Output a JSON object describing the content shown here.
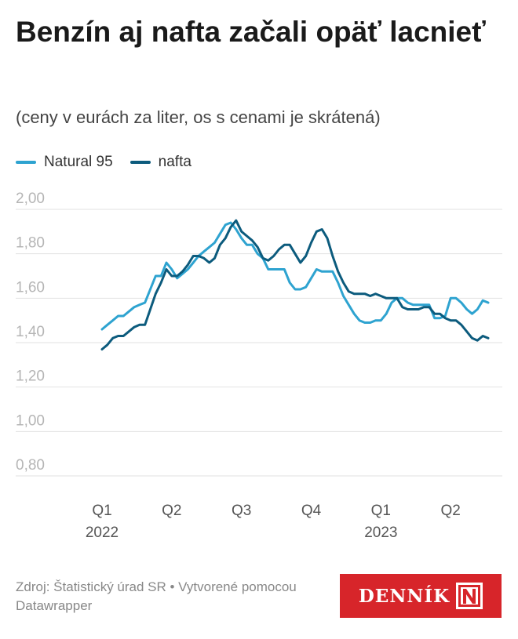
{
  "header": {
    "title": "Benzín aj nafta začali opäť lacnieť",
    "subtitle": "(ceny v eurách za liter, os s cenami je skrátená)"
  },
  "legend": [
    {
      "label": "Natural 95",
      "color": "#2ea3d0"
    },
    {
      "label": "nafta",
      "color": "#0c5b7d"
    }
  ],
  "footer": {
    "source": "Zdroj: Štatistický úrad SR • Vytvorené pomocou Datawrapper"
  },
  "brand": {
    "name": "DENNÍK",
    "mark_icon": "letter-n-logo"
  },
  "chart_data": {
    "type": "line",
    "title": "Benzín aj nafta začali opäť lacnieť",
    "subtitle": "(ceny v eurách za liter, os s cenami je skrátená)",
    "xlabel": "",
    "ylabel": "",
    "ylim": [
      0.8,
      2.0
    ],
    "y_ticks": [
      "2,00",
      "1,80",
      "1,60",
      "1,40",
      "1,20",
      "1,00",
      "0,80"
    ],
    "y_tick_values": [
      2.0,
      1.8,
      1.6,
      1.4,
      1.2,
      1.0,
      0.8
    ],
    "x_ticks": [
      {
        "label": "Q1",
        "sub": "2022",
        "week": 0
      },
      {
        "label": "Q2",
        "sub": "",
        "week": 13
      },
      {
        "label": "Q3",
        "sub": "",
        "week": 26
      },
      {
        "label": "Q4",
        "sub": "",
        "week": 39
      },
      {
        "label": "Q1",
        "sub": "2023",
        "week": 52
      },
      {
        "label": "Q2",
        "sub": "",
        "week": 65
      }
    ],
    "x_unit": "week",
    "grid": true,
    "legend_position": "top-left",
    "series": [
      {
        "name": "Natural 95",
        "color": "#2ea3d0",
        "values": [
          1.46,
          1.48,
          1.5,
          1.52,
          1.52,
          1.54,
          1.56,
          1.57,
          1.58,
          1.64,
          1.7,
          1.7,
          1.76,
          1.73,
          1.69,
          1.71,
          1.73,
          1.76,
          1.79,
          1.81,
          1.83,
          1.85,
          1.89,
          1.93,
          1.94,
          1.91,
          1.87,
          1.84,
          1.84,
          1.8,
          1.78,
          1.73,
          1.73,
          1.73,
          1.73,
          1.67,
          1.64,
          1.64,
          1.65,
          1.69,
          1.73,
          1.72,
          1.72,
          1.72,
          1.67,
          1.61,
          1.57,
          1.53,
          1.5,
          1.49,
          1.49,
          1.5,
          1.5,
          1.53,
          1.58,
          1.6,
          1.6,
          1.58,
          1.57,
          1.57,
          1.57,
          1.57,
          1.51,
          1.51,
          1.52,
          1.6,
          1.6,
          1.58,
          1.55,
          1.53,
          1.55,
          1.59,
          1.58
        ]
      },
      {
        "name": "nafta",
        "color": "#0c5b7d",
        "values": [
          1.37,
          1.39,
          1.42,
          1.43,
          1.43,
          1.45,
          1.47,
          1.48,
          1.48,
          1.55,
          1.62,
          1.67,
          1.73,
          1.7,
          1.7,
          1.72,
          1.75,
          1.79,
          1.79,
          1.78,
          1.76,
          1.78,
          1.84,
          1.87,
          1.92,
          1.95,
          1.9,
          1.88,
          1.86,
          1.83,
          1.78,
          1.77,
          1.79,
          1.82,
          1.84,
          1.84,
          1.8,
          1.76,
          1.79,
          1.85,
          1.9,
          1.91,
          1.87,
          1.79,
          1.72,
          1.67,
          1.63,
          1.62,
          1.62,
          1.62,
          1.61,
          1.62,
          1.61,
          1.6,
          1.6,
          1.6,
          1.56,
          1.55,
          1.55,
          1.55,
          1.56,
          1.56,
          1.53,
          1.53,
          1.51,
          1.5,
          1.5,
          1.48,
          1.45,
          1.42,
          1.41,
          1.43,
          1.42
        ]
      }
    ]
  }
}
